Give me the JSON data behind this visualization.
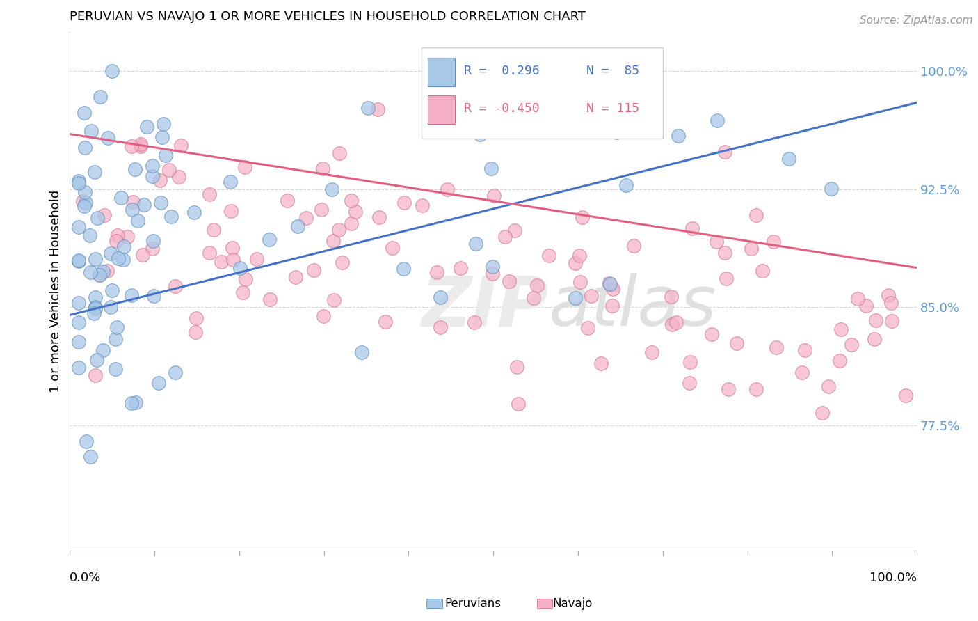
{
  "title": "PERUVIAN VS NAVAJO 1 OR MORE VEHICLES IN HOUSEHOLD CORRELATION CHART",
  "source": "Source: ZipAtlas.com",
  "ylabel": "1 or more Vehicles in Household",
  "xlim": [
    0,
    1
  ],
  "ylim": [
    0.695,
    1.025
  ],
  "yticks": [
    0.775,
    0.85,
    0.925,
    1.0
  ],
  "ytick_labels": [
    "77.5%",
    "85.0%",
    "92.5%",
    "100.0%"
  ],
  "legend_r_blue": "R =  0.296",
  "legend_n_blue": "N =  85",
  "legend_r_pink": "R = -0.450",
  "legend_n_pink": "N = 115",
  "blue_color": "#A8C8E8",
  "pink_color": "#F5B0C5",
  "blue_line_color": "#4472C4",
  "pink_line_color": "#E06080",
  "blue_edge_color": "#6090C0",
  "pink_edge_color": "#D07090"
}
